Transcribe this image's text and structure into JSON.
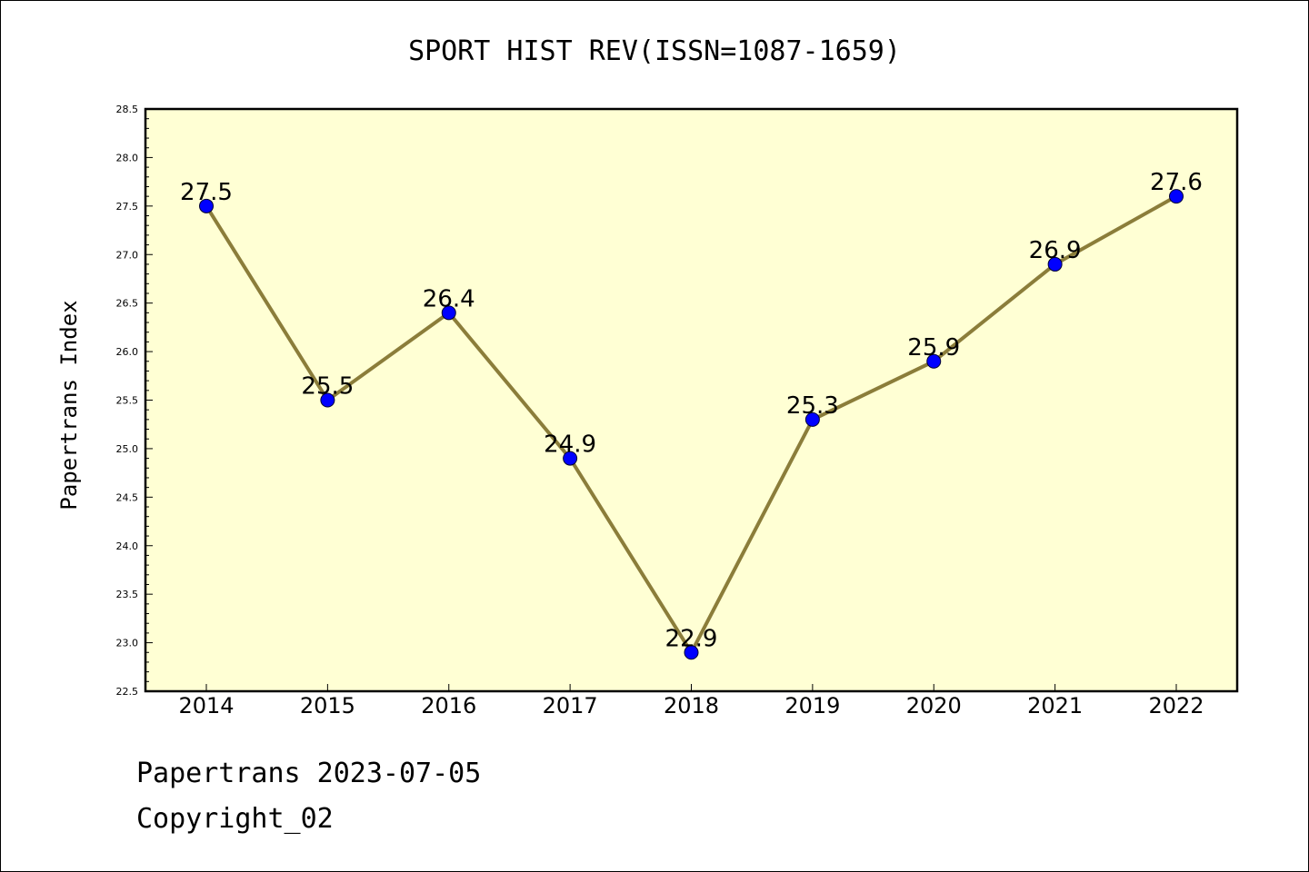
{
  "chart_data": {
    "type": "line",
    "title": "SPORT HIST REV(ISSN=1087-1659)",
    "xlabel": "",
    "ylabel": "Papertrans Index",
    "categories": [
      "2014",
      "2015",
      "2016",
      "2017",
      "2018",
      "2019",
      "2020",
      "2021",
      "2022"
    ],
    "values": [
      27.5,
      25.5,
      26.4,
      24.9,
      22.9,
      25.3,
      25.9,
      26.9,
      27.6
    ],
    "data_labels": [
      "27.5",
      "25.5",
      "26.4",
      "24.9",
      "22.9",
      "25.3",
      "25.9",
      "26.9",
      "27.6"
    ],
    "ylim": [
      22.5,
      28.5
    ],
    "yticks": [
      "22.5",
      "23.0",
      "23.5",
      "24.0",
      "24.5",
      "25.0",
      "25.5",
      "26.0",
      "26.5",
      "27.0",
      "27.5",
      "28.0",
      "28.5"
    ],
    "grid": false,
    "legend": "none",
    "colors": {
      "plot_background": "#ffffd4",
      "line": "#8b7d3a",
      "marker": "#0000ff"
    }
  },
  "footer": {
    "line1": "Papertrans 2023-07-05",
    "line2": "Copyright_02"
  }
}
